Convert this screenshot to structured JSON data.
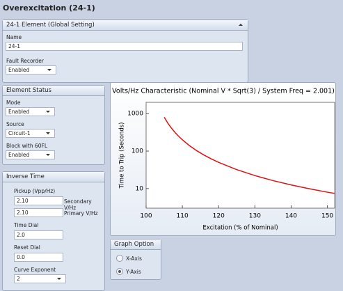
{
  "title": "Overexcitation (24-1)",
  "global_panel": {
    "header": "24-1 Element (Global Setting)",
    "name_label": "Name",
    "name_value": "24-1",
    "fault_recorder_label": "Fault Recorder",
    "fault_recorder_value": "Enabled"
  },
  "status_panel": {
    "header": "Element Status",
    "fields": [
      {
        "label": "Mode",
        "value": "Enabled"
      },
      {
        "label": "Source",
        "value": "Circuit-1"
      },
      {
        "label": "Block with 60FL",
        "value": "Enabled"
      }
    ]
  },
  "inverse_panel": {
    "header": "Inverse Time",
    "pickup_label": "Pickup (Vpp/Hz)",
    "secondary_value": "2.10",
    "secondary_unit": "Secondary V/Hz",
    "primary_value": "2.10",
    "primary_unit": "Primary V/Hz",
    "time_dial_label": "Time Dial",
    "time_dial_value": "2.0",
    "reset_dial_label": "Reset Dial",
    "reset_dial_value": "0.0",
    "curve_exponent_label": "Curve Exponent",
    "curve_exponent_value": "2"
  },
  "graph_option": {
    "header": "Graph Option",
    "options": [
      "X-Axis",
      "Y-Axis"
    ],
    "selected": 1
  },
  "chart_data": {
    "type": "line",
    "title": "Volts/Hz Characteristic (Nominal V * Sqrt(3) / System Freq = 2.001)",
    "x_label": "Excitation (% of Nominal)",
    "y_label": "Time to Trip (Seconds)",
    "x": [
      105,
      106,
      107,
      108,
      109,
      110,
      112,
      114,
      116,
      118,
      120,
      125,
      130,
      135,
      140,
      145,
      150,
      152
    ],
    "series": [
      {
        "color": "#e01010",
        "values": [
          800,
          555.6,
          408.2,
          312.5,
          246.9,
          200,
          138.9,
          102.0,
          78.1,
          61.7,
          50,
          32,
          22.2,
          16.3,
          12.5,
          9.9,
          8,
          7.4
        ]
      }
    ],
    "xlim": [
      100,
      152
    ],
    "xticks": [
      100,
      110,
      120,
      130,
      140,
      150
    ],
    "ylim": [
      3,
      2000
    ],
    "yticks": [
      10,
      100,
      1000
    ],
    "y_log": true,
    "grid": false
  }
}
